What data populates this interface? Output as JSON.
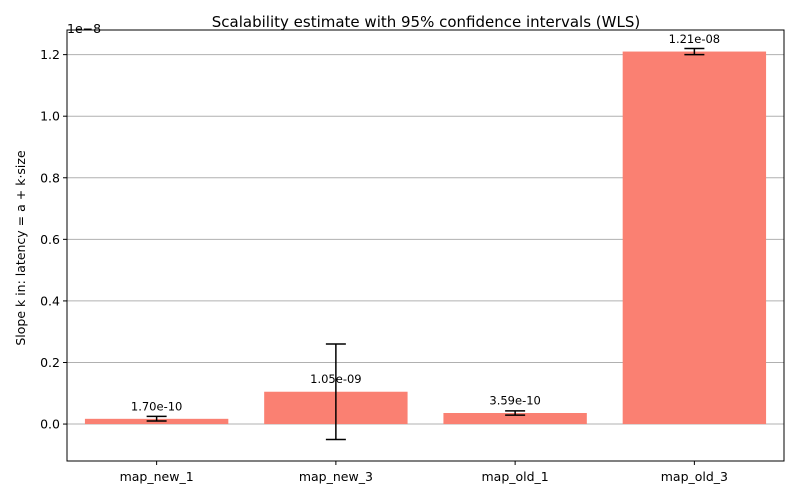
{
  "chart_data": {
    "type": "bar",
    "title": "Scalability estimate with 95% confidence intervals (WLS)",
    "xlabel": "",
    "ylabel": "Slope k in: latency = a + k·size",
    "y_offset_label": "1e−8",
    "categories": [
      "map_new_1",
      "map_new_3",
      "map_old_1",
      "map_old_3"
    ],
    "values": [
      0.017,
      0.105,
      0.0359,
      1.21
    ],
    "ci_low": [
      0.01,
      -0.05,
      0.029,
      1.2
    ],
    "ci_high": [
      0.025,
      0.26,
      0.043,
      1.22
    ],
    "value_labels": [
      "1.70e-10",
      "1.05e-09",
      "3.59e-10",
      "1.21e-08"
    ],
    "unit_multiplier": 1e-08,
    "ylim": [
      -0.12,
      1.28
    ],
    "yticks": [
      0.0,
      0.2,
      0.4,
      0.6,
      0.8,
      1.0,
      1.2
    ],
    "ytick_labels": [
      "0.0",
      "0.2",
      "0.4",
      "0.6",
      "0.8",
      "1.0",
      "1.2"
    ],
    "grid": "y",
    "bar_color": "#fa8072",
    "error_bar_color": "#000000",
    "grid_color": "#b0b0b0"
  }
}
